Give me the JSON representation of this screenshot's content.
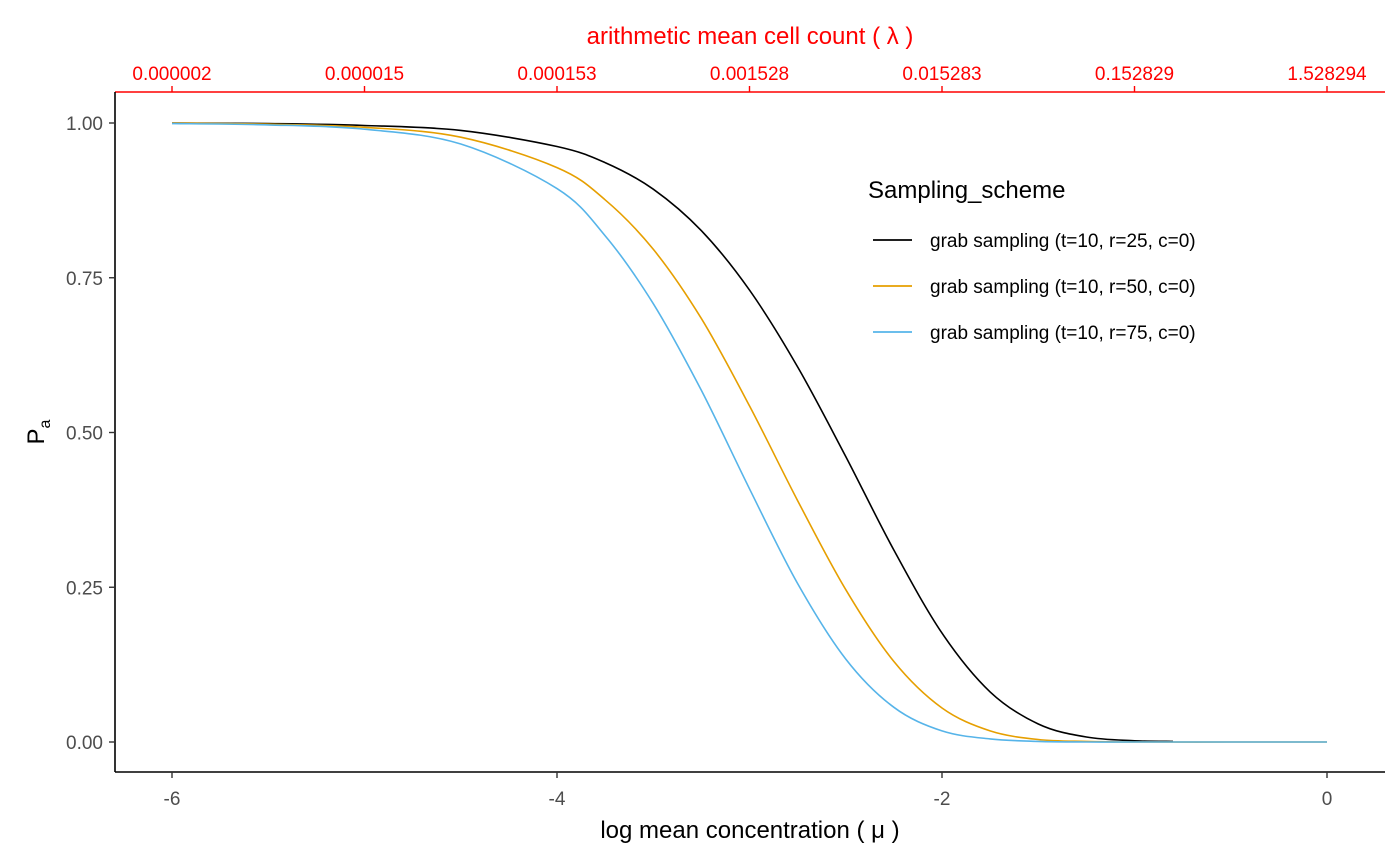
{
  "chart_data": {
    "type": "line",
    "xlabel": "log mean concentration  ( μ )",
    "ylabel": "P",
    "ylabel_sub": "a",
    "xlim": [
      -6,
      0
    ],
    "ylim": [
      0,
      1
    ],
    "x_ticks": [
      -6,
      -4,
      -2,
      0
    ],
    "x_tick_labels": [
      "-6",
      "-4",
      "-2",
      "0"
    ],
    "y_ticks": [
      0,
      0.25,
      0.5,
      0.75,
      1
    ],
    "y_tick_labels": [
      "0.00",
      "0.25",
      "0.50",
      "0.75",
      "1.00"
    ],
    "top_axis": {
      "label": "arithmetic mean cell count ( λ )",
      "ticks": [
        -6,
        -5,
        -4,
        -3,
        -2,
        -1,
        0
      ],
      "tick_labels": [
        "0.000002",
        "0.000015",
        "0.000153",
        "0.001528",
        "0.015283",
        "0.152829",
        "1.528294"
      ],
      "color": "#ff0000"
    },
    "legend": {
      "title": "Sampling_scheme",
      "placement": "top-right"
    },
    "grid": false,
    "series": [
      {
        "name": "grab sampling (t=10, r=25, c=0)",
        "color": "#000000",
        "x": [
          -6,
          -5.5,
          -5,
          -4.5,
          -4,
          -3.75,
          -3.5,
          -3.25,
          -3,
          -2.75,
          -2.5,
          -2.25,
          -2,
          -1.75,
          -1.5,
          -1.25,
          -1,
          -0.8
        ],
        "y": [
          1,
          0.999,
          0.996,
          0.988,
          0.962,
          0.936,
          0.893,
          0.826,
          0.73,
          0.606,
          0.461,
          0.31,
          0.176,
          0.081,
          0.029,
          0.008,
          0.002,
          0.001
        ]
      },
      {
        "name": "grab sampling (t=10, r=50, c=0)",
        "color": "#E69F00",
        "x": [
          -6,
          -5.5,
          -5,
          -4.5,
          -4,
          -3.75,
          -3.5,
          -3.25,
          -3,
          -2.75,
          -2.5,
          -2.25,
          -2,
          -1.75,
          -1.5,
          -1.25,
          -1,
          -0.5,
          0
        ],
        "y": [
          1,
          0.998,
          0.993,
          0.977,
          0.928,
          0.876,
          0.796,
          0.684,
          0.543,
          0.39,
          0.246,
          0.13,
          0.055,
          0.018,
          0.004,
          0.001,
          0,
          0,
          0
        ]
      },
      {
        "name": "grab sampling (t=10, r=75, c=0)",
        "color": "#56B4E9",
        "x": [
          -6,
          -5.5,
          -5,
          -4.5,
          -4,
          -3.75,
          -3.5,
          -3.25,
          -3,
          -2.75,
          -2.5,
          -2.25,
          -2,
          -1.75,
          -1.5,
          -1.25,
          -1,
          -0.5,
          0
        ],
        "y": [
          0.999,
          0.997,
          0.99,
          0.966,
          0.894,
          0.818,
          0.708,
          0.568,
          0.409,
          0.256,
          0.134,
          0.056,
          0.018,
          0.005,
          0.001,
          0,
          0,
          0,
          0
        ]
      }
    ]
  }
}
